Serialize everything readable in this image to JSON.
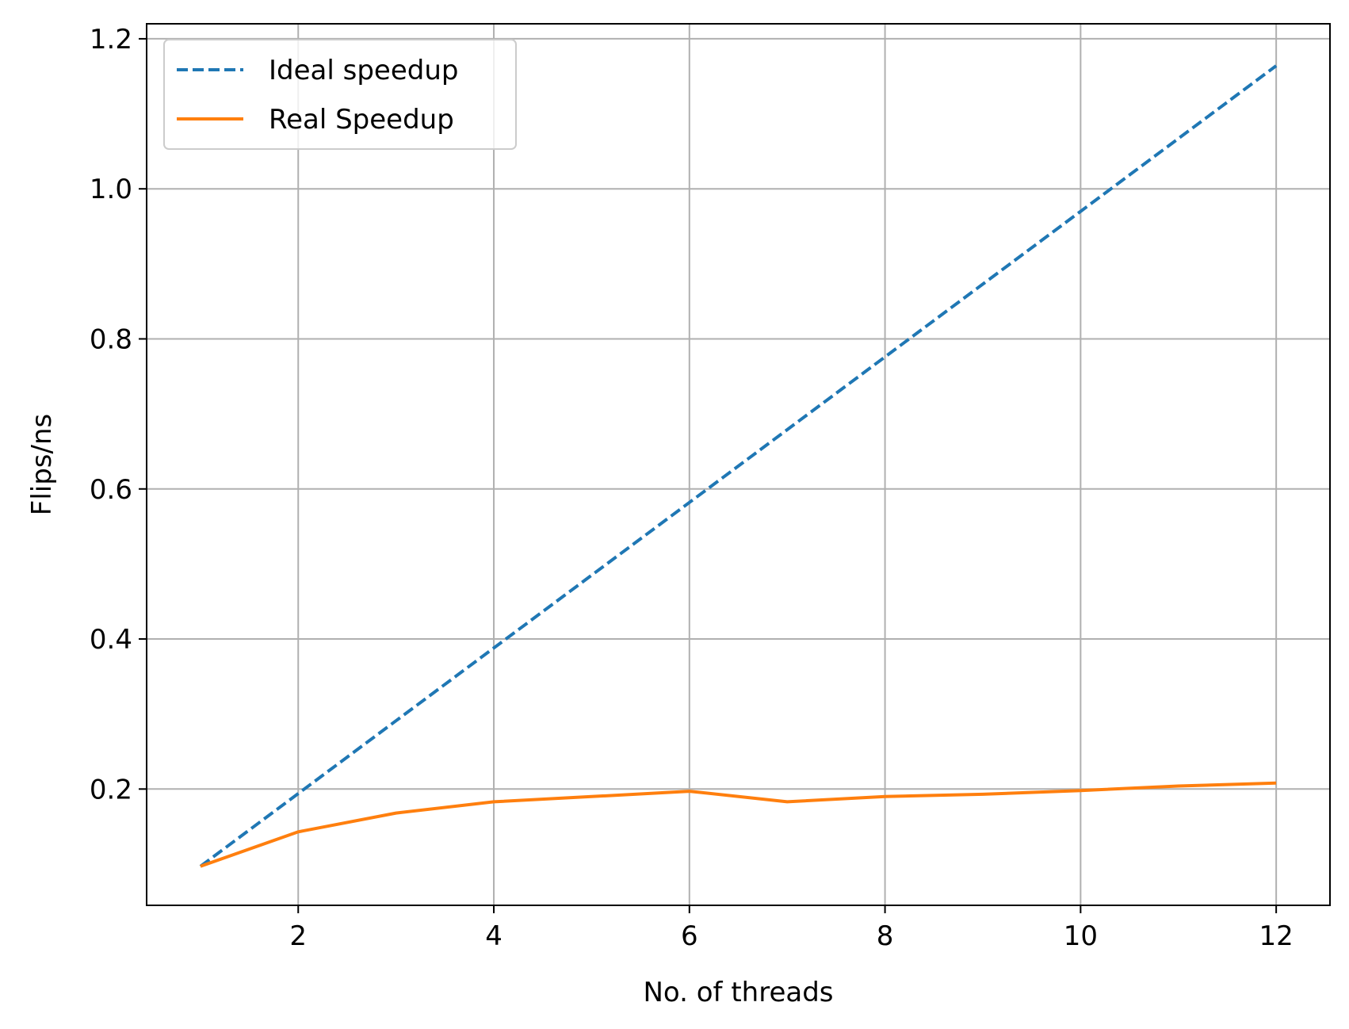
{
  "chart_data": {
    "type": "line",
    "xlabel": "No. of threads",
    "ylabel": "Flips/ns",
    "xlim": [
      0.45,
      12.55
    ],
    "ylim": [
      0.045,
      1.22
    ],
    "xticks": [
      2,
      4,
      6,
      8,
      10,
      12
    ],
    "yticks": [
      0.2,
      0.4,
      0.6,
      0.8,
      1.0,
      1.2
    ],
    "xtick_labels": [
      "2",
      "4",
      "6",
      "8",
      "10",
      "12"
    ],
    "ytick_labels": [
      "0.2",
      "0.4",
      "0.6",
      "0.8",
      "1.0",
      "1.2"
    ],
    "grid": true,
    "legend_position": "top-left",
    "x": [
      1,
      2,
      3,
      4,
      5,
      6,
      7,
      8,
      9,
      10,
      11,
      12
    ],
    "series": [
      {
        "name": "Ideal speedup",
        "style": "dashed",
        "color": "#1f77b4",
        "values": [
          0.097,
          0.194,
          0.291,
          0.388,
          0.485,
          0.582,
          0.679,
          0.776,
          0.873,
          0.97,
          1.067,
          1.164
        ]
      },
      {
        "name": "Real Speedup",
        "style": "solid",
        "color": "#ff7f0e",
        "values": [
          0.097,
          0.143,
          0.168,
          0.183,
          0.19,
          0.197,
          0.183,
          0.19,
          0.193,
          0.198,
          0.204,
          0.208
        ]
      }
    ]
  }
}
